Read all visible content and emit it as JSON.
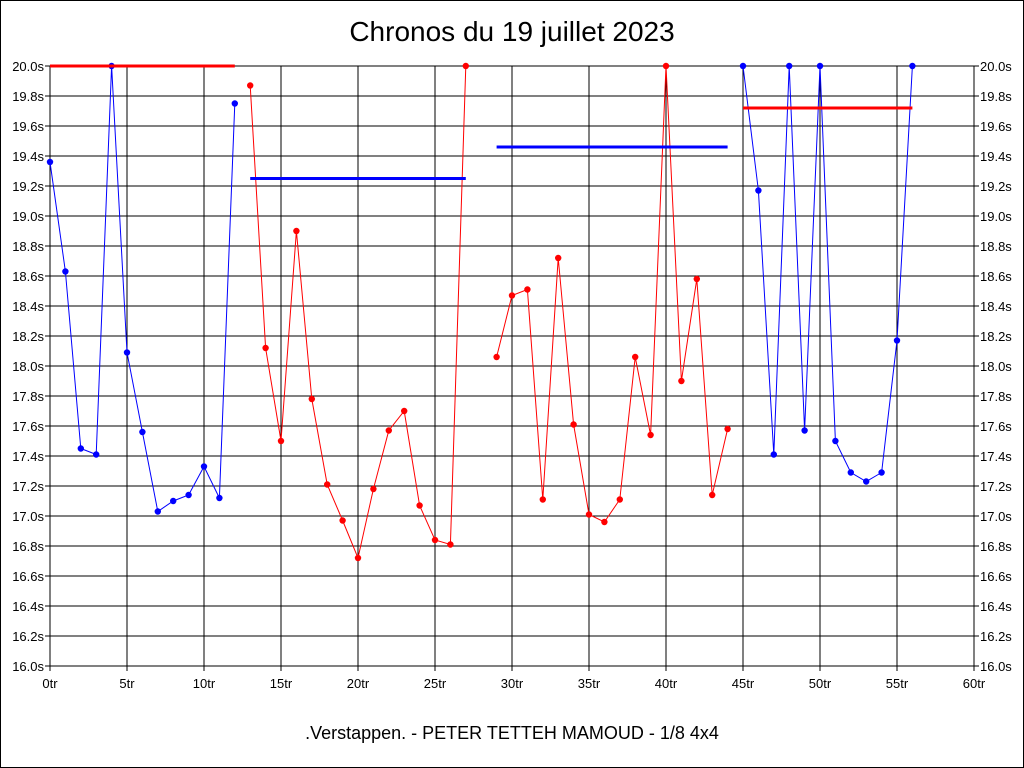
{
  "chart_data": {
    "type": "line",
    "title": "Chronos du 19 juillet 2023",
    "subtitle": ".Verstappen. - PETER TETTEH MAMOUD - 1/8 4x4",
    "xlabel": "",
    "ylabel": "",
    "xlim": [
      0,
      60
    ],
    "ylim": [
      16.0,
      20.0
    ],
    "grid": true,
    "x_ticks": [
      "0tr",
      "5tr",
      "10tr",
      "15tr",
      "20tr",
      "25tr",
      "30tr",
      "35tr",
      "40tr",
      "45tr",
      "50tr",
      "55tr",
      "60tr"
    ],
    "y_ticks": [
      "16.0s",
      "16.2s",
      "16.4s",
      "16.6s",
      "16.8s",
      "17.0s",
      "17.2s",
      "17.4s",
      "17.6s",
      "17.8s",
      "18.0s",
      "18.2s",
      "18.4s",
      "18.6s",
      "18.8s",
      "19.0s",
      "19.2s",
      "19.4s",
      "19.6s",
      "19.8s",
      "20.0s"
    ],
    "y_ticks_right": [
      "16.0s",
      "16.2s",
      "16.4s",
      "16.6s",
      "16.8s",
      "17.0s",
      "17.2s",
      "17.4s",
      "17.6s",
      "17.8s",
      "18.0s",
      "18.2s",
      "18.4s",
      "18.6s",
      "18.8s",
      "19.0s",
      "19.2s",
      "19.4s",
      "19.6s",
      "19.8s",
      "20.0s"
    ],
    "series": [
      {
        "color": "#0000ff",
        "points": [
          [
            0,
            19.36
          ],
          [
            1,
            18.63
          ],
          [
            2,
            17.45
          ],
          [
            3,
            17.41
          ],
          [
            4,
            20.0
          ],
          [
            5,
            18.09
          ],
          [
            6,
            17.56
          ],
          [
            7,
            17.03
          ],
          [
            8,
            17.1
          ],
          [
            9,
            17.14
          ],
          [
            10,
            17.33
          ],
          [
            11,
            17.12
          ],
          [
            12,
            19.75
          ]
        ]
      },
      {
        "color": "#ff0000",
        "points": [
          [
            13,
            19.87
          ],
          [
            14,
            18.12
          ],
          [
            15,
            17.5
          ],
          [
            16,
            18.9
          ],
          [
            17,
            17.78
          ],
          [
            18,
            17.21
          ],
          [
            19,
            16.97
          ],
          [
            20,
            16.72
          ],
          [
            21,
            17.18
          ],
          [
            22,
            17.57
          ],
          [
            23,
            17.7
          ],
          [
            24,
            17.07
          ],
          [
            25,
            16.84
          ],
          [
            26,
            16.81
          ],
          [
            27,
            20.0
          ]
        ]
      },
      {
        "color": "#ff0000",
        "points": [
          [
            29,
            18.06
          ],
          [
            30,
            18.47
          ],
          [
            31,
            18.51
          ],
          [
            32,
            17.11
          ],
          [
            33,
            18.72
          ],
          [
            34,
            17.61
          ],
          [
            35,
            17.01
          ],
          [
            36,
            16.96
          ],
          [
            37,
            17.11
          ],
          [
            38,
            18.06
          ],
          [
            39,
            17.54
          ],
          [
            40,
            20.0
          ],
          [
            41,
            17.9
          ],
          [
            42,
            18.58
          ],
          [
            43,
            17.14
          ],
          [
            44,
            17.58
          ]
        ]
      },
      {
        "color": "#0000ff",
        "points": [
          [
            45,
            20.0
          ],
          [
            46,
            19.17
          ],
          [
            47,
            17.41
          ],
          [
            48,
            20.0
          ],
          [
            49,
            17.57
          ],
          [
            50,
            20.0
          ],
          [
            51,
            17.5
          ],
          [
            52,
            17.29
          ],
          [
            53,
            17.23
          ],
          [
            54,
            17.29
          ],
          [
            55,
            18.17
          ],
          [
            56,
            20.0
          ]
        ]
      }
    ],
    "average_lines": [
      {
        "color": "#ff0000",
        "x": [
          0,
          12
        ],
        "y": 20.0
      },
      {
        "color": "#0000ff",
        "x": [
          13,
          27
        ],
        "y": 19.25
      },
      {
        "color": "#0000ff",
        "x": [
          29,
          44
        ],
        "y": 19.46
      },
      {
        "color": "#ff0000",
        "x": [
          45,
          56
        ],
        "y": 19.72
      }
    ]
  }
}
